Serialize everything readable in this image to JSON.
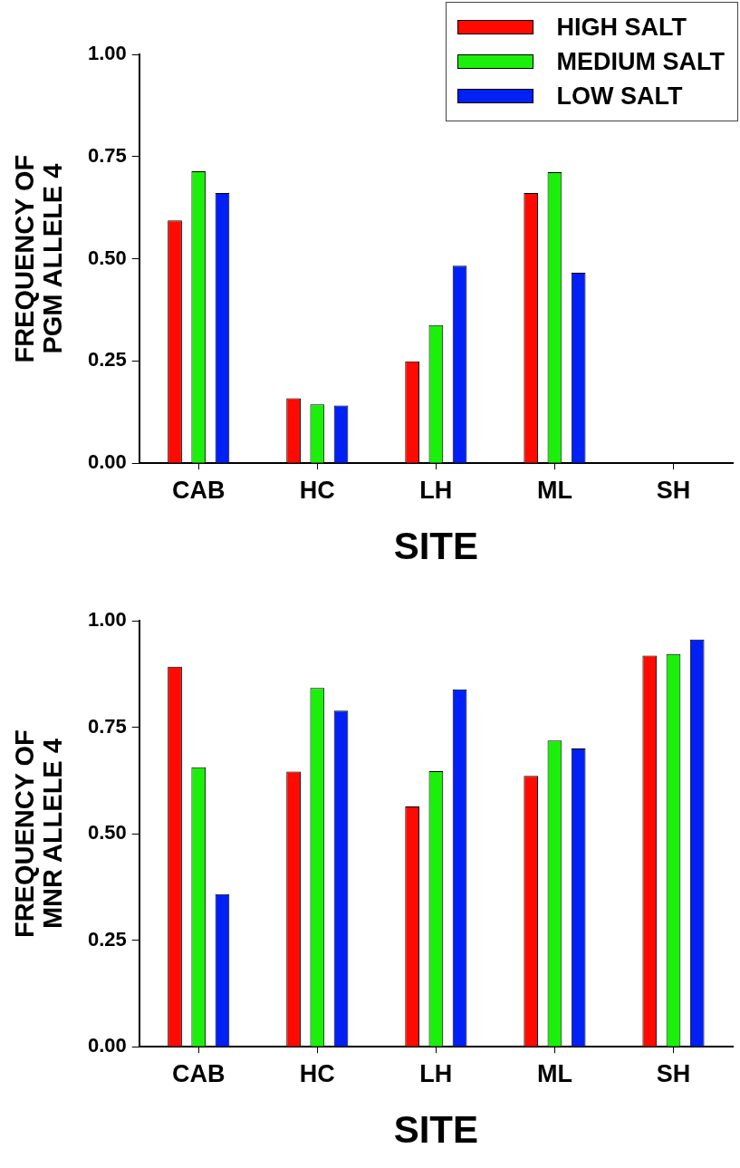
{
  "chart_data": [
    {
      "type": "bar",
      "ylabel": "FREQUENCY OF\nPGM ALLELE 4",
      "xlabel": "SITE",
      "categories": [
        "CAB",
        "HC",
        "LH",
        "ML",
        "SH"
      ],
      "series": [
        {
          "name": "HIGH SALT",
          "color": "#ff0a00",
          "values": [
            0.594,
            0.159,
            0.249,
            0.661,
            null
          ]
        },
        {
          "name": "MEDIUM SALT",
          "color": "#1af00a",
          "values": [
            0.714,
            0.144,
            0.338,
            0.712,
            null
          ]
        },
        {
          "name": "LOW SALT",
          "color": "#0020f5",
          "values": [
            0.661,
            0.141,
            0.483,
            0.466,
            null
          ]
        }
      ],
      "ylim": [
        0,
        1
      ],
      "yticks": [
        {
          "value": 0,
          "label": "0.00"
        },
        {
          "value": 0.25,
          "label": "0.25"
        },
        {
          "value": 0.5,
          "label": "0.50"
        },
        {
          "value": 0.75,
          "label": "0.75"
        },
        {
          "value": 1,
          "label": "1.00"
        }
      ],
      "grid": false,
      "legend": "top right"
    },
    {
      "type": "bar",
      "ylabel": "FREQUENCY OF\nMNR ALLELE 4",
      "xlabel": "SITE",
      "categories": [
        "CAB",
        "HC",
        "LH",
        "ML",
        "SH"
      ],
      "series": [
        {
          "color": "#ff0a00",
          "values": [
            0.892,
            0.646,
            0.564,
            0.636,
            0.918
          ]
        },
        {
          "color": "#1af00a",
          "values": [
            0.656,
            0.842,
            0.647,
            0.719,
            0.922
          ]
        },
        {
          "color": "#0020f5",
          "values": [
            0.358,
            0.789,
            0.839,
            0.7,
            0.956
          ]
        }
      ],
      "ylim": [
        0,
        1
      ],
      "yticks": [
        {
          "value": 0,
          "label": "0.00"
        },
        {
          "value": 0.25,
          "label": "0.25"
        },
        {
          "value": 0.5,
          "label": "0.50"
        },
        {
          "value": 0.75,
          "label": "0.75"
        },
        {
          "value": 1,
          "label": "1.00"
        }
      ],
      "grid": false
    }
  ]
}
